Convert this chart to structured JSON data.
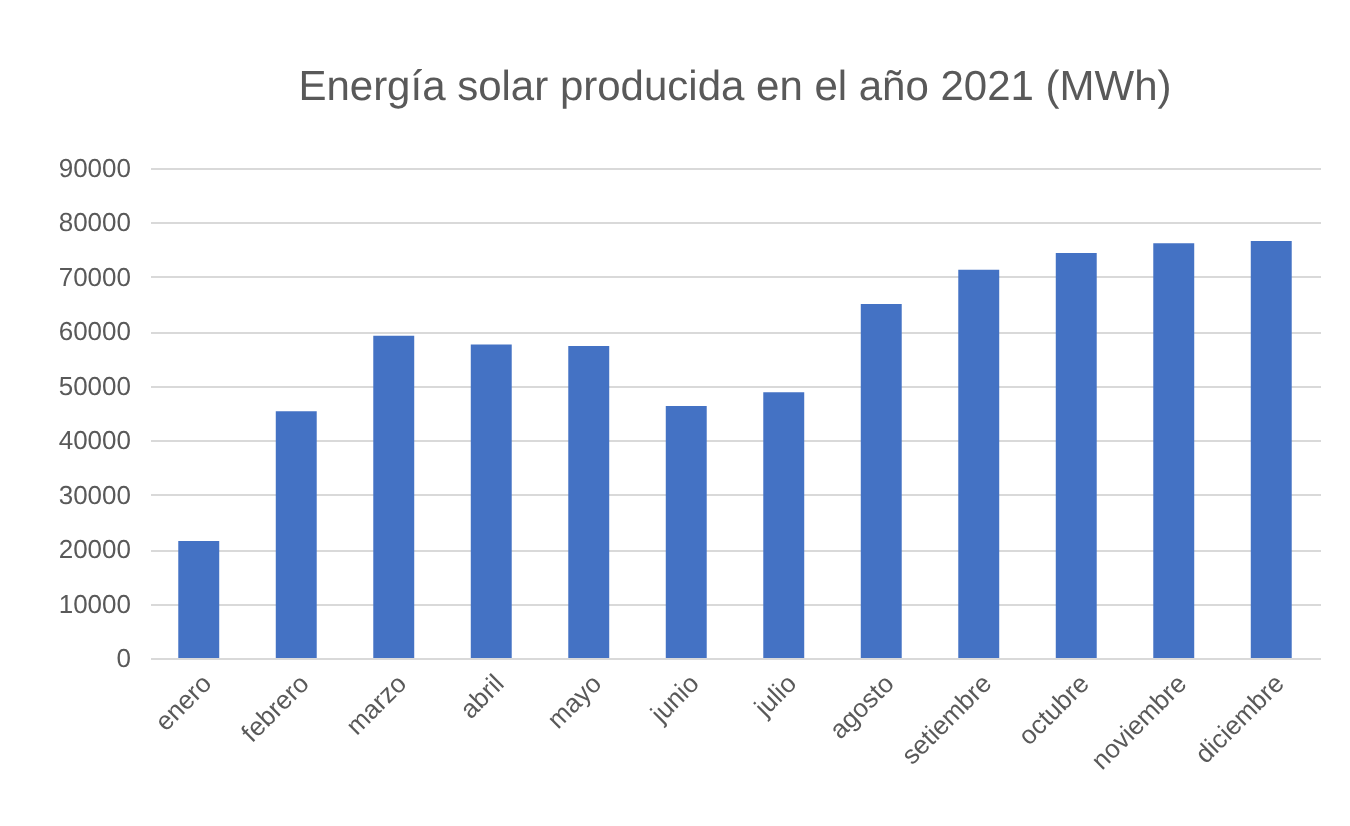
{
  "chart_data": {
    "type": "bar",
    "title": "Energía solar producida en el año 2021 (MWh)",
    "categories": [
      "enero",
      "febrero",
      "marzo",
      "abril",
      "mayo",
      "junio",
      "julio",
      "agosto",
      "setiembre",
      "octubre",
      "noviembre",
      "diciembre"
    ],
    "values": [
      21500,
      45300,
      59200,
      57600,
      57300,
      46300,
      48800,
      65000,
      71300,
      74400,
      76200,
      76600
    ],
    "color": "#4472c4",
    "ylim": [
      0,
      90000
    ],
    "yticks": [
      0,
      10000,
      20000,
      30000,
      40000,
      50000,
      60000,
      70000,
      80000,
      90000
    ],
    "grid": true
  }
}
